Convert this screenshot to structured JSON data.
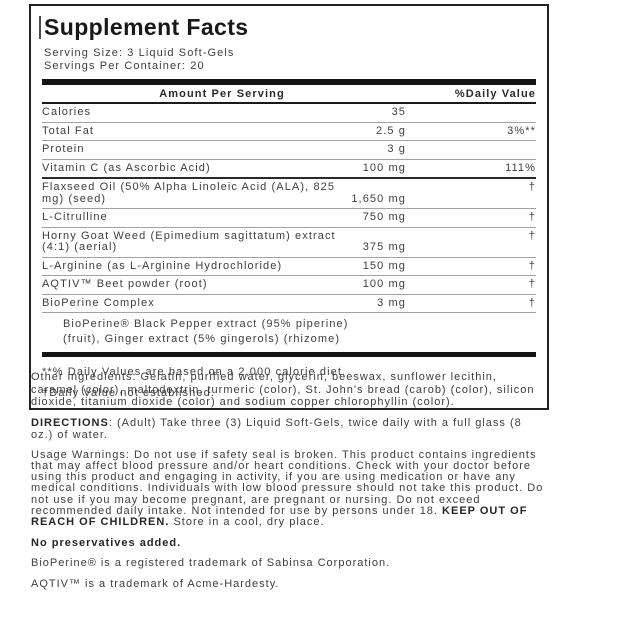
{
  "colors": {
    "text": "#3e3e3e",
    "heading": "#181818",
    "rule_light": "#a2a2a2",
    "rule_dark": "#141414",
    "background": "#ffffff"
  },
  "panel": {
    "title": "Supplement Facts",
    "serving_size": "Serving Size: 3 Liquid Soft-Gels",
    "servings_per_container": "Servings Per Container: 20",
    "header": {
      "amount_col": "Amount Per Serving",
      "dv_col": "%Daily Value"
    },
    "rows": [
      {
        "name": "Calories",
        "amount": "35",
        "dv": ""
      },
      {
        "name": "Total Fat",
        "amount": "2.5 g",
        "dv": "3%**"
      },
      {
        "name": "Protein",
        "amount": "3 g",
        "dv": ""
      },
      {
        "name": "Vitamin C (as Ascorbic Acid)",
        "amount": "100 mg",
        "dv": "111%"
      },
      {
        "name": "Flaxseed Oil (50% Alpha Linoleic Acid (ALA), 825",
        "name2": "mg) (seed)",
        "amount": "1,650 mg",
        "dv": "†"
      },
      {
        "name": "L-Citrulline",
        "amount": "750 mg",
        "dv": "†"
      },
      {
        "name": "Horny Goat Weed (Epimedium sagittatum) extract",
        "name2": "(4:1) (aerial)",
        "amount": "375 mg",
        "dv": "†"
      },
      {
        "name": "L-Arginine (as L-Arginine Hydrochloride)",
        "amount": "150 mg",
        "dv": "†"
      },
      {
        "name": "AQTIV™ Beet powder (root)",
        "amount": "100 mg",
        "dv": "†"
      },
      {
        "name": "BioPerine Complex",
        "amount": "3 mg",
        "dv": "†"
      }
    ],
    "sub_ingredients": {
      "line1": "BioPerine® Black Pepper extract (95% piperine)",
      "line2": "(fruit), Ginger extract (5% gingerols) (rhizome)"
    },
    "footnotes": {
      "daily_values": "**% Daily Values are based on a 2,000 calorie diet.",
      "not_established": "†Daily Value not established."
    }
  },
  "details": {
    "other_ingredients": "Other ingredients: Gelatin, purified water, glycerin, beeswax, sunflower lecithin, caramel (color), maltodextrin, turmeric (color), St. John's bread (carob) (color), silicon dioxide, titanium dioxide (color) and sodium copper chlorophyllin (color).",
    "directions_label": "DIRECTIONS",
    "directions_text": ": (Adult) Take three (3) Liquid Soft-Gels, twice daily with a full glass (8 oz.) of water.",
    "usage_warnings_start": "Usage Warnings: Do not use if safety seal is broken. This product contains ingredients that may affect blood pressure and/or heart conditions. Check with your doctor before using this product and engaging in activity, if you are using medication or have any medical conditions. Individuals with low blood pressure should not take this product. Do not use if you may become pregnant, are pregnant or nursing. Do not exceed recommended daily intake. Not intended for use by persons under 18. ",
    "usage_warnings_bold": "KEEP OUT OF REACH OF CHILDREN.",
    "usage_warnings_end": " Store in a cool, dry place.",
    "no_preservatives": "No preservatives added.",
    "bioperine_trademark": "BioPerine® is a registered trademark of Sabinsa Corporation.",
    "aqtiv_trademark": "AQTIV™ is a trademark of Acme-Hardesty."
  }
}
